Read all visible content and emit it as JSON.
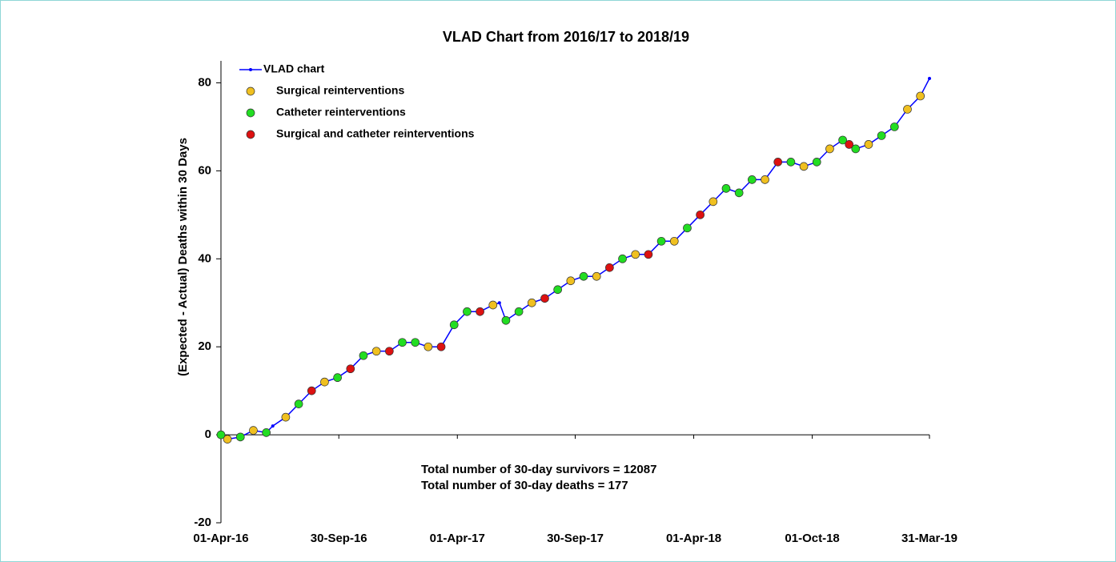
{
  "chart_data": {
    "type": "line",
    "title": "VLAD Chart from 2016/17 to 2018/19",
    "ylabel": "(Expected - Actual) Deaths within 30 Days",
    "xlim": [
      0,
      1094
    ],
    "ylim": [
      -20,
      85
    ],
    "xticks": [
      {
        "value": 0,
        "label": "01-Apr-16"
      },
      {
        "value": 182,
        "label": "30-Sep-16"
      },
      {
        "value": 365,
        "label": "01-Apr-17"
      },
      {
        "value": 547,
        "label": "30-Sep-17"
      },
      {
        "value": 730,
        "label": "01-Apr-18"
      },
      {
        "value": 913,
        "label": "01-Oct-18"
      },
      {
        "value": 1094,
        "label": "31-Mar-19"
      }
    ],
    "yticks": [
      -20,
      0,
      20,
      40,
      60,
      80
    ],
    "legend": "upper left",
    "series": [
      {
        "name": "VLAD chart",
        "kind": "line",
        "color": "#0000ff",
        "x": [
          0,
          10,
          30,
          50,
          70,
          80,
          100,
          120,
          140,
          160,
          180,
          200,
          220,
          240,
          260,
          280,
          300,
          320,
          340,
          360,
          380,
          400,
          420,
          430,
          440,
          460,
          480,
          500,
          520,
          540,
          560,
          580,
          600,
          620,
          640,
          660,
          680,
          700,
          720,
          740,
          760,
          780,
          800,
          820,
          840,
          860,
          880,
          900,
          920,
          940,
          960,
          980,
          1000,
          1020,
          1040,
          1060,
          1080,
          1094
        ],
        "values": [
          0,
          -1,
          -0.5,
          1,
          0.5,
          2,
          4,
          7,
          10,
          12,
          13,
          15,
          18,
          19,
          19,
          21,
          21,
          20,
          20,
          25,
          28,
          28,
          29.5,
          30,
          26,
          28,
          30,
          31,
          33,
          35,
          36,
          36,
          38,
          40,
          41,
          41,
          44,
          44,
          47,
          50,
          53,
          56,
          55,
          58,
          58,
          62,
          62,
          61,
          62,
          65,
          67,
          65,
          66,
          68,
          70,
          74,
          77,
          81
        ]
      },
      {
        "name": "Surgical reinterventions",
        "kind": "scatter",
        "color": "#f0c020",
        "x": [
          10,
          50,
          100,
          160,
          240,
          320,
          420,
          480,
          540,
          580,
          640,
          700,
          760,
          840,
          900,
          940,
          1000,
          1060,
          1080
        ],
        "values": [
          -1,
          1,
          4,
          12,
          19,
          20,
          29.5,
          30,
          35,
          36,
          41,
          44,
          53,
          58,
          61,
          65,
          66,
          74,
          77
        ]
      },
      {
        "name": "Catheter reinterventions",
        "kind": "scatter",
        "color": "#22dd22",
        "x": [
          0,
          30,
          70,
          120,
          180,
          220,
          280,
          300,
          360,
          380,
          440,
          460,
          520,
          560,
          620,
          680,
          720,
          780,
          800,
          820,
          880,
          920,
          960,
          980,
          1020,
          1040
        ],
        "values": [
          0,
          -0.5,
          0.5,
          7,
          13,
          18,
          21,
          21,
          25,
          28,
          26,
          28,
          33,
          36,
          40,
          44,
          47,
          56,
          55,
          58,
          62,
          62,
          67,
          65,
          68,
          70
        ]
      },
      {
        "name": "Surgical and catheter reinterventions",
        "kind": "scatter",
        "color": "#dd1111",
        "x": [
          140,
          200,
          260,
          340,
          400,
          500,
          600,
          660,
          740,
          860,
          970
        ],
        "values": [
          10,
          15,
          19,
          20,
          28,
          31,
          38,
          41,
          50,
          62,
          66
        ]
      }
    ],
    "annotations": [
      "Total number of 30-day survivors = 12087",
      "Total number of 30-day deaths = 177"
    ]
  }
}
